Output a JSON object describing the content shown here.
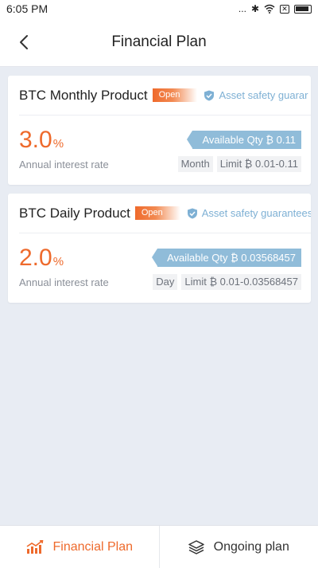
{
  "status_bar": {
    "time": "6:05 PM",
    "dots": "...",
    "bluetooth": "✱",
    "close_box": "✕"
  },
  "header": {
    "title": "Financial Plan",
    "back_icon": "chevron-left-icon"
  },
  "products": [
    {
      "name": "BTC Monthly Product",
      "status": "Open",
      "safety": "Asset safety guarar",
      "rate_value": "3.0",
      "rate_unit": "%",
      "rate_label": "Annual interest rate",
      "available": "Available Qty ₿ 0.11",
      "period": "Month",
      "limit": "Limit ₿ 0.01-0.11"
    },
    {
      "name": "BTC Daily Product",
      "status": "Open",
      "safety": "Asset safety guarantees",
      "rate_value": "2.0",
      "rate_unit": "%",
      "rate_label": "Annual interest rate",
      "available": "Available Qty ₿ 0.03568457",
      "period": "Day",
      "limit": "Limit ₿ 0.01-0.03568457"
    }
  ],
  "tabs": [
    {
      "label": "Financial Plan",
      "icon": "bar-chart-icon",
      "active": true
    },
    {
      "label": "Ongoing plan",
      "icon": "layers-icon",
      "active": false
    }
  ],
  "colors": {
    "accent": "#ee6a2c",
    "info_blue": "#90bcd9",
    "safety_blue": "#7eb0d4",
    "background": "#e8ecf3"
  }
}
